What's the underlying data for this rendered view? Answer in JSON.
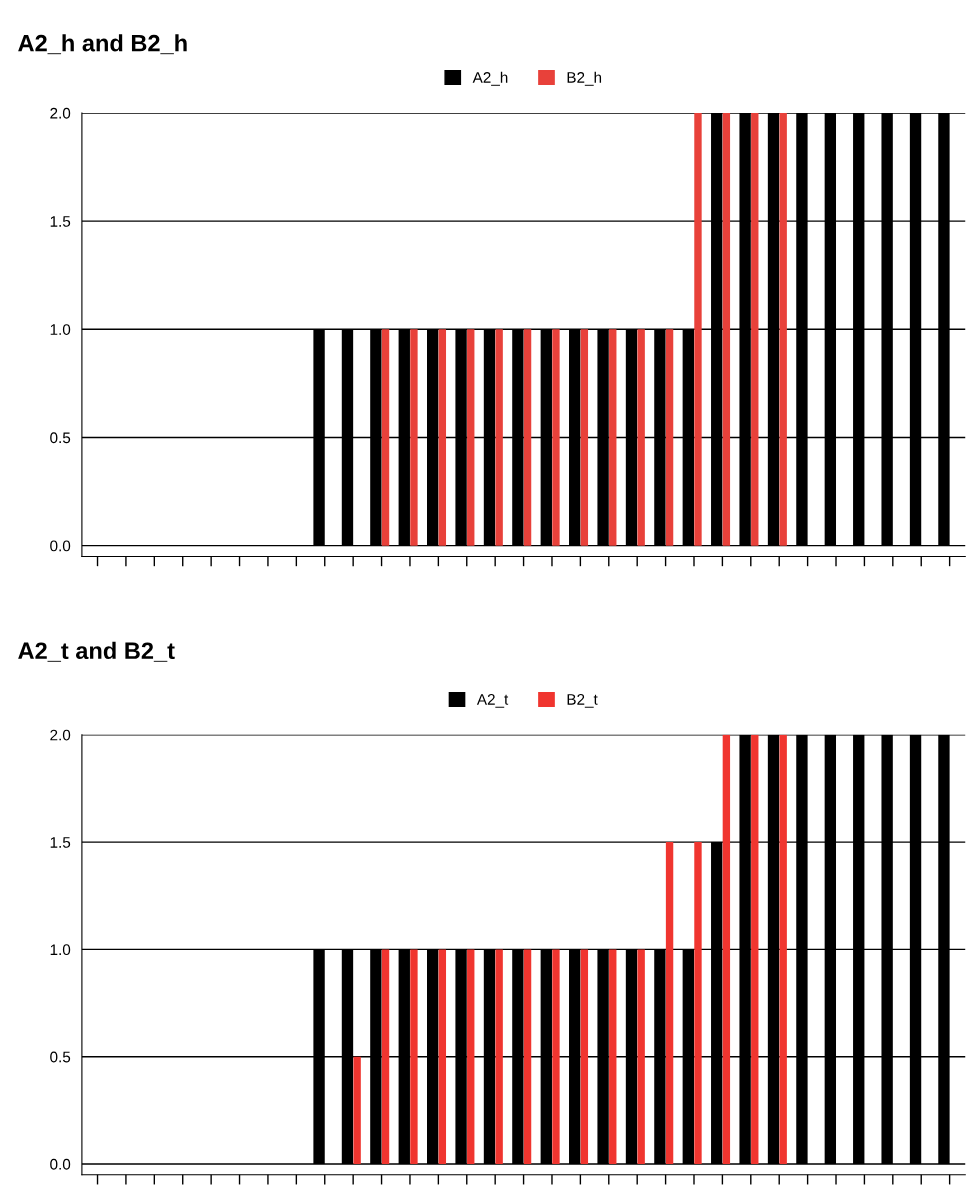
{
  "chart_data": [
    {
      "type": "bar",
      "title": "A2_h and B2_h",
      "categories": [
        null,
        null,
        null,
        null,
        null,
        null,
        null,
        null,
        null,
        null,
        null,
        null,
        null,
        null,
        null,
        null,
        null,
        null,
        null,
        null,
        null,
        null,
        null,
        null,
        null,
        null,
        null,
        null,
        null,
        null,
        null
      ],
      "series": [
        {
          "name": "A2_h",
          "color": "#000000",
          "values": [
            0,
            0,
            0,
            0,
            0,
            0,
            0,
            0,
            1,
            1,
            1,
            1,
            1,
            1,
            1,
            1,
            1,
            1,
            1,
            1,
            1,
            1,
            2,
            2,
            2,
            2,
            2,
            2,
            2,
            2,
            2
          ]
        },
        {
          "name": "B2_h",
          "color": "#e8413a",
          "values": [
            0,
            0,
            0,
            0,
            0,
            0,
            0,
            0,
            0,
            0,
            1,
            1,
            1,
            1,
            1,
            1,
            1,
            1,
            1,
            1,
            1,
            2,
            2,
            2,
            2,
            null,
            null,
            null,
            null,
            null,
            null
          ]
        }
      ],
      "ylim": [
        -0.05,
        2
      ],
      "yticks": [
        {
          "value": 0,
          "label": "0.0"
        },
        {
          "value": 0.5,
          "label": "0.5"
        },
        {
          "value": 1,
          "label": "1.0"
        },
        {
          "value": 1.5,
          "label": "1.5"
        },
        {
          "value": 2,
          "label": "2.0"
        }
      ],
      "grid": "y",
      "legend": "top",
      "tick_labels": "y"
    },
    {
      "type": "bar",
      "title": "A2_t and B2_t",
      "categories": [
        null,
        null,
        null,
        null,
        null,
        null,
        null,
        null,
        null,
        null,
        null,
        null,
        null,
        null,
        null,
        null,
        null,
        null,
        null,
        null,
        null,
        null,
        null,
        null,
        null,
        null,
        null,
        null,
        null,
        null,
        null
      ],
      "series": [
        {
          "name": "A2_t",
          "color": "#000000",
          "values": [
            0,
            0,
            0,
            0,
            0,
            0,
            0,
            0,
            1,
            1,
            1,
            1,
            1,
            1,
            1,
            1,
            1,
            1,
            1,
            1,
            1,
            1,
            1.5,
            2,
            2,
            2,
            2,
            2,
            2,
            2,
            2
          ]
        },
        {
          "name": "B2_t",
          "color": "#f0352f",
          "values": [
            0,
            0,
            0,
            0,
            0,
            0,
            0,
            0,
            0,
            0.5,
            1,
            1,
            1,
            1,
            1,
            1,
            1,
            1,
            1,
            1,
            1.5,
            1.5,
            2,
            2,
            2,
            null,
            null,
            null,
            null,
            null,
            null
          ]
        }
      ],
      "ylim": [
        -0.05,
        2
      ],
      "yticks": [
        {
          "value": 0,
          "label": "0.0"
        },
        {
          "value": 0.5,
          "label": "0.5"
        },
        {
          "value": 1,
          "label": "1.0"
        },
        {
          "value": 1.5,
          "label": "1.5"
        },
        {
          "value": 2,
          "label": "2.0"
        }
      ],
      "grid": "y",
      "legend": "top",
      "tick_labels": "y"
    }
  ]
}
